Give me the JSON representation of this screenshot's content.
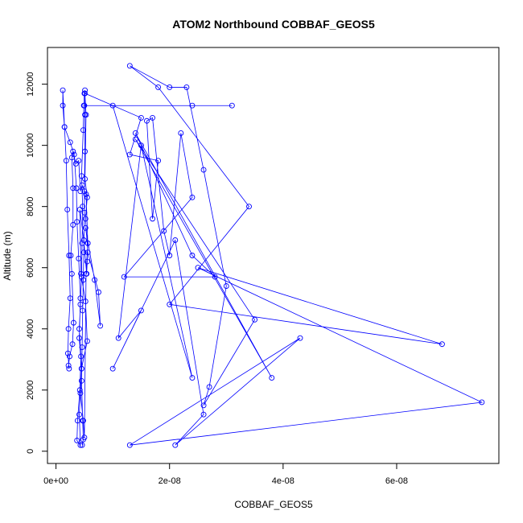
{
  "chart_data": {
    "type": "line",
    "title": "ATOM2 Northbound COBBAF_GEOS5",
    "xlabel": "COBBAF_GEOS5",
    "ylabel": "Altitude (m)",
    "xlim": [
      -1.5e-09,
      7.8e-08
    ],
    "ylim": [
      -400,
      13200
    ],
    "x_ticks": [
      0,
      2e-08,
      4e-08,
      6e-08
    ],
    "x_tick_labels": [
      "0e+00",
      "2e-08",
      "4e-08",
      "6e-08"
    ],
    "y_ticks": [
      0,
      2000,
      4000,
      6000,
      8000,
      10000,
      12000
    ],
    "y_tick_labels": [
      "0",
      "2000",
      "4000",
      "6000",
      "8000",
      "10000",
      "12000"
    ],
    "grid": false,
    "legend": "none",
    "series": [
      {
        "color": "#0000ff",
        "marker": "open-circle",
        "points": [
          [
            4.6e-09,
            200
          ],
          [
            4.8e-09,
            380
          ],
          [
            4.7e-09,
            1000
          ],
          [
            4.5e-09,
            2300
          ],
          [
            4.6e-09,
            3400
          ],
          [
            4.7e-09,
            4600
          ],
          [
            4.8e-09,
            5600
          ],
          [
            4.9e-09,
            6500
          ],
          [
            5e-09,
            7800
          ],
          [
            5e-09,
            8500
          ],
          [
            5.1e-09,
            9800
          ],
          [
            5.1e-09,
            11000
          ],
          [
            5.1e-09,
            11800
          ],
          [
            5e-09,
            11700
          ],
          [
            4.9e-09,
            11300
          ],
          [
            4.8e-09,
            10500
          ],
          [
            4.5e-09,
            9000
          ],
          [
            4.7e-09,
            8000
          ],
          [
            4.6e-09,
            6800
          ],
          [
            4.5e-09,
            5700
          ],
          [
            4.3e-09,
            4800
          ],
          [
            4.1e-09,
            4000
          ],
          [
            4.4e-09,
            3100
          ],
          [
            4.2e-09,
            2000
          ],
          [
            3.8e-09,
            1000
          ],
          [
            3.7e-09,
            350
          ],
          [
            4.3e-09,
            200
          ],
          [
            4.1e-09,
            1200
          ],
          [
            4.5e-09,
            2700
          ],
          [
            4.1e-09,
            3700
          ],
          [
            4.3e-09,
            5000
          ],
          [
            4e-09,
            6300
          ],
          [
            3.7e-09,
            7500
          ],
          [
            3.6e-09,
            8600
          ],
          [
            3.2e-09,
            9700
          ],
          [
            2.5e-09,
            10100
          ],
          [
            1.5e-09,
            10600
          ],
          [
            1.2e-09,
            11300
          ],
          [
            1.2e-09,
            11800
          ],
          [
            1.5e-09,
            10600
          ],
          [
            1.8e-09,
            9500
          ],
          [
            2e-09,
            7900
          ],
          [
            2.3e-09,
            6400
          ],
          [
            2.5e-09,
            5000
          ],
          [
            2.2e-09,
            4000
          ],
          [
            2.1e-09,
            3200
          ],
          [
            2.3e-09,
            2700
          ],
          [
            2.2e-09,
            2800
          ],
          [
            2.4e-09,
            3100
          ],
          [
            2.9e-09,
            3500
          ],
          [
            3.1e-09,
            4200
          ],
          [
            2.8e-09,
            5800
          ],
          [
            2.6e-09,
            6400
          ],
          [
            3e-09,
            7400
          ],
          [
            3e-09,
            8600
          ],
          [
            2.8e-09,
            9600
          ],
          [
            3e-09,
            9800
          ],
          [
            3.5e-09,
            9400
          ],
          [
            4e-09,
            9500
          ],
          [
            4.3e-09,
            8500
          ],
          [
            4.6e-09,
            8700
          ],
          [
            5.3e-09,
            8400
          ],
          [
            5.6e-09,
            6800
          ],
          [
            5.5e-09,
            6200
          ],
          [
            5.4e-09,
            5800
          ],
          [
            4.9e-09,
            6900
          ],
          [
            4.2e-09,
            7900
          ],
          [
            4.4e-09,
            5800
          ],
          [
            5.2e-09,
            4900
          ],
          [
            5.5e-09,
            3600
          ],
          [
            4.5e-09,
            2700
          ],
          [
            4.3e-09,
            1900
          ],
          [
            4.8e-09,
            1000
          ],
          [
            5e-09,
            450
          ],
          [
            5.3e-09,
            5800
          ],
          [
            5.6e-09,
            6800
          ],
          [
            5.2e-09,
            7300
          ],
          [
            6.8e-09,
            5600
          ],
          [
            7.8e-09,
            4100
          ],
          [
            7.5e-09,
            5200
          ],
          [
            5.6e-09,
            6500
          ],
          [
            5.2e-09,
            7600
          ],
          [
            5.5e-09,
            8300
          ],
          [
            5.1e-09,
            8900
          ],
          [
            5.3e-09,
            11000
          ],
          [
            5.1e-09,
            11700
          ],
          [
            1.5e-08,
            10900
          ],
          [
            1.3e-08,
            9700
          ],
          [
            1.8e-08,
            9500
          ],
          [
            1.7e-08,
            7600
          ],
          [
            1.6e-08,
            10800
          ],
          [
            1.7e-08,
            10900
          ],
          [
            1.9e-08,
            7200
          ],
          [
            2e-08,
            6400
          ],
          [
            2.2e-08,
            10400
          ],
          [
            2.4e-08,
            8300
          ],
          [
            1.2e-08,
            5700
          ],
          [
            2.8e-08,
            5700
          ],
          [
            2.4e-08,
            6400
          ],
          [
            1.4e-08,
            10400
          ],
          [
            3.8e-08,
            2400
          ],
          [
            1.4e-08,
            10200
          ],
          [
            3.5e-08,
            4300
          ],
          [
            2.6e-08,
            1500
          ],
          [
            2.7e-08,
            2100
          ],
          [
            3e-08,
            5400
          ],
          [
            2.6e-08,
            9200
          ],
          [
            2.3e-08,
            11900
          ],
          [
            2e-08,
            11900
          ],
          [
            1.3e-08,
            12600
          ],
          [
            1.8e-08,
            11900
          ],
          [
            3.4e-08,
            8000
          ],
          [
            2e-08,
            4800
          ],
          [
            6.8e-08,
            3500
          ],
          [
            2.5e-08,
            6000
          ],
          [
            7.5e-08,
            1600
          ],
          [
            1.3e-08,
            200
          ],
          [
            4.3e-08,
            3700
          ],
          [
            2.1e-08,
            200
          ],
          [
            2.6e-08,
            1200
          ],
          [
            2.1e-08,
            6900
          ],
          [
            1e-08,
            2700
          ],
          [
            1.5e-08,
            4600
          ],
          [
            1.1e-08,
            3700
          ],
          [
            1.5e-08,
            10000
          ],
          [
            2.4e-08,
            2400
          ],
          [
            1e-08,
            11300
          ],
          [
            3.1e-08,
            11300
          ],
          [
            5e-09,
            11300
          ],
          [
            2.4e-08,
            11300
          ]
        ]
      }
    ]
  }
}
